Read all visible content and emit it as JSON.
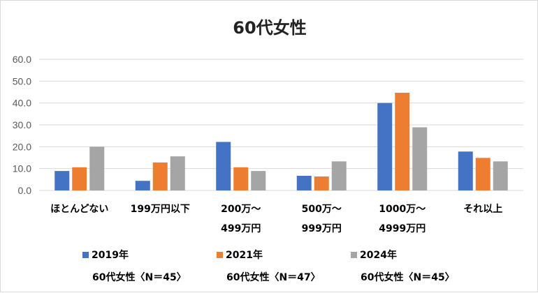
{
  "chart_data": {
    "type": "bar",
    "title": "60代女性",
    "categories": [
      [
        "ほとんどない"
      ],
      [
        "199万円以下"
      ],
      [
        "200万～",
        "499万円"
      ],
      [
        "500万～",
        "999万円"
      ],
      [
        "1000万～",
        "4999万円"
      ],
      [
        "それ以上"
      ]
    ],
    "series": [
      {
        "name": "2019年",
        "sub": "60代女性〈N＝45〉",
        "color": "#4472C4",
        "values": [
          8.9,
          4.4,
          22.2,
          6.7,
          40.0,
          17.8
        ]
      },
      {
        "name": "2021年",
        "sub": "60代女性〈N＝47〉",
        "color": "#ED7D31",
        "values": [
          10.6,
          12.8,
          10.6,
          6.4,
          44.7,
          14.9
        ]
      },
      {
        "name": "2024年",
        "sub": "60代女性〈N＝45〉",
        "color": "#A5A5A5",
        "values": [
          20.0,
          15.6,
          8.9,
          13.3,
          28.9,
          13.3
        ]
      }
    ],
    "y_ticks": [
      "0.0",
      "10.0",
      "20.0",
      "30.0",
      "40.0",
      "50.0",
      "60.0"
    ],
    "ylim": [
      0,
      60
    ],
    "grid": true,
    "legend": "bottom"
  }
}
